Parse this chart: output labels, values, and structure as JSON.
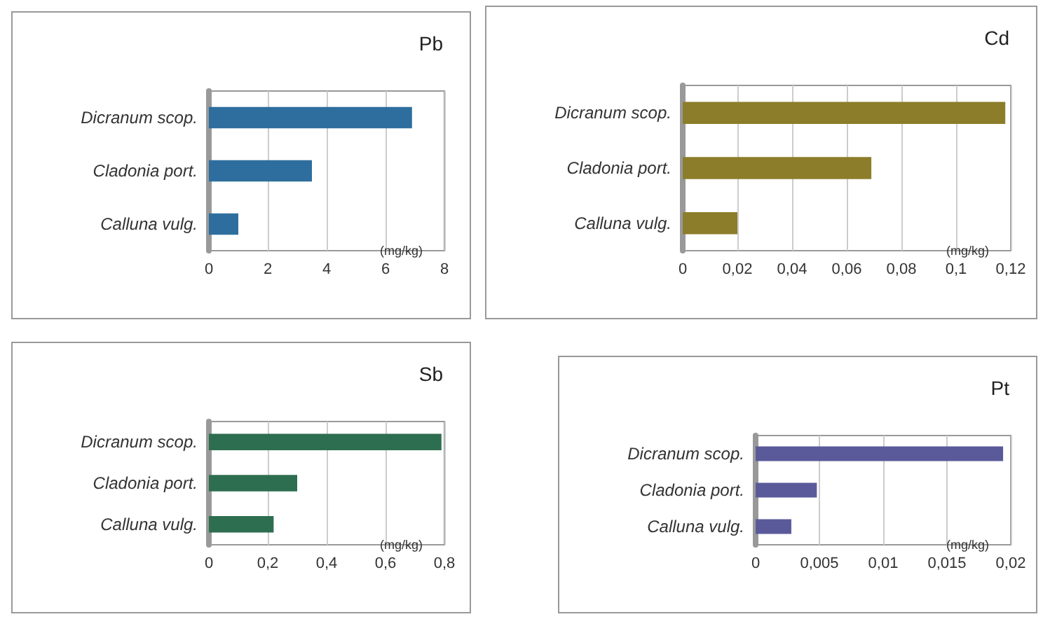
{
  "chart_data": [
    {
      "type": "bar",
      "orientation": "horizontal",
      "title": "Pb",
      "xlabel": "(mg/kg)",
      "categories": [
        "Dicranum scop.",
        "Cladonia port.",
        "Calluna vulg."
      ],
      "values": [
        6.9,
        3.5,
        1.0
      ],
      "color": "#2e6e9e",
      "xlim": [
        0,
        8
      ],
      "xticks": [
        0,
        2,
        4,
        6,
        8
      ],
      "grid": "x"
    },
    {
      "type": "bar",
      "orientation": "horizontal",
      "title": "Cd",
      "xlabel": "(mg/kg)",
      "categories": [
        "Dicranum scop.",
        "Cladonia port.",
        "Calluna vulg."
      ],
      "values": [
        0.118,
        0.069,
        0.02
      ],
      "color": "#8c7d2a",
      "xlim": [
        0,
        0.12
      ],
      "xticks": [
        0,
        {
          "value": 0.02,
          "label": "0,02"
        },
        {
          "value": 0.04,
          "label": "0,04"
        },
        {
          "value": 0.06,
          "label": "0,06"
        },
        {
          "value": 0.08,
          "label": "0,08"
        },
        {
          "value": 0.1,
          "label": "0,1"
        },
        {
          "value": 0.12,
          "label": "0,12"
        }
      ],
      "grid": "x"
    },
    {
      "type": "bar",
      "orientation": "horizontal",
      "title": "Sb",
      "xlabel": "(mg/kg)",
      "categories": [
        "Dicranum scop.",
        "Cladonia port.",
        "Calluna vulg."
      ],
      "values": [
        0.79,
        0.3,
        0.22
      ],
      "color": "#2e6e50",
      "xlim": [
        0,
        0.8
      ],
      "xticks": [
        0,
        {
          "value": 0.2,
          "label": "0,2"
        },
        {
          "value": 0.4,
          "label": "0,4"
        },
        {
          "value": 0.6,
          "label": "0,6"
        },
        {
          "value": 0.8,
          "label": "0,8"
        }
      ],
      "grid": "x"
    },
    {
      "type": "bar",
      "orientation": "horizontal",
      "title": "Pt",
      "xlabel": "(mg/kg)",
      "categories": [
        "Dicranum scop.",
        "Cladonia port.",
        "Calluna vulg."
      ],
      "values": [
        0.0194,
        0.0048,
        0.0028
      ],
      "color": "#5a5a9a",
      "xlim": [
        0,
        0.02
      ],
      "xticks": [
        0,
        {
          "value": 0.005,
          "label": "0,005"
        },
        {
          "value": 0.01,
          "label": "0,01"
        },
        {
          "value": 0.015,
          "label": "0,015"
        },
        {
          "value": 0.02,
          "label": "0,02"
        }
      ],
      "grid": "x"
    }
  ]
}
